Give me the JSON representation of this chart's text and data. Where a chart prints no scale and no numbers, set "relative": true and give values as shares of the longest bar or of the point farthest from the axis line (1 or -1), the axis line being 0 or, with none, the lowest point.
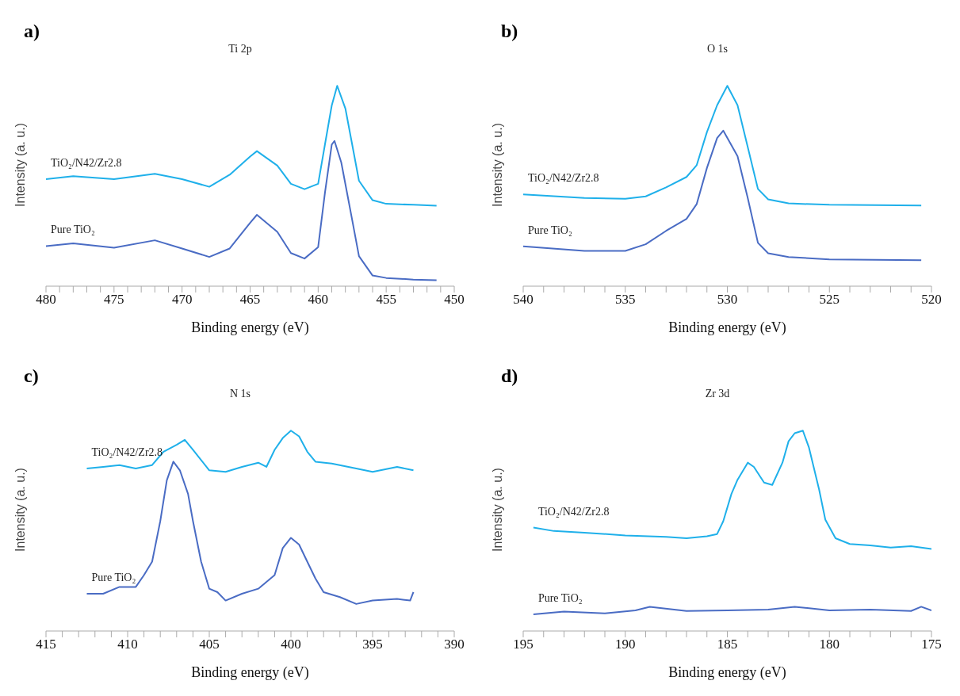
{
  "chart_data": [
    {
      "type": "line",
      "title": "a)",
      "annotations": [
        "Ti 2p"
      ],
      "xlabel": "Binding energy (eV)",
      "ylabel": "Intensity (a. u.)",
      "relative": true,
      "marker": "none",
      "line_style": "solid",
      "tick_labels": "x",
      "xlim": [
        480,
        450
      ],
      "xticks": [
        480,
        {
          "value": 479,
          "label": null
        },
        {
          "value": 478,
          "label": null
        },
        {
          "value": 477,
          "label": null
        },
        {
          "value": 476,
          "label": null
        },
        475,
        {
          "value": 474,
          "label": null
        },
        {
          "value": 473,
          "label": null
        },
        {
          "value": 472,
          "label": null
        },
        {
          "value": 471,
          "label": null
        },
        470,
        {
          "value": 469,
          "label": null
        },
        {
          "value": 468,
          "label": null
        },
        {
          "value": 467,
          "label": null
        },
        {
          "value": 466,
          "label": null
        },
        465,
        {
          "value": 464,
          "label": null
        },
        {
          "value": 463,
          "label": null
        },
        {
          "value": 462,
          "label": null
        },
        {
          "value": 461,
          "label": null
        },
        460,
        {
          "value": 459,
          "label": null
        },
        {
          "value": 458,
          "label": null
        },
        {
          "value": 457,
          "label": null
        },
        {
          "value": 456,
          "label": null
        },
        455,
        {
          "value": 454,
          "label": null
        },
        {
          "value": 453,
          "label": null
        },
        {
          "value": 452,
          "label": null
        },
        {
          "value": 451,
          "label": null
        },
        450
      ],
      "series": [
        {
          "name": "TiO₂/N42/Zr2.8",
          "color": "#1fb0ea",
          "x": [
            480,
            478,
            475,
            472,
            470,
            468,
            466.5,
            465,
            464.5,
            463,
            462,
            461,
            460,
            459.5,
            459,
            458.6,
            458,
            457.5,
            457,
            456,
            455,
            453,
            451.3
          ],
          "values": [
            0.534,
            0.549,
            0.534,
            0.561,
            0.534,
            0.496,
            0.556,
            0.647,
            0.674,
            0.602,
            0.511,
            0.484,
            0.511,
            0.707,
            0.902,
            1.0,
            0.887,
            0.707,
            0.526,
            0.429,
            0.411,
            0.406,
            0.402
          ]
        },
        {
          "name": "Pure TiO₂",
          "color": "#4a6cc4",
          "x": [
            480,
            478,
            475,
            472,
            470,
            468,
            466.5,
            465,
            464.5,
            463,
            462,
            461,
            460,
            459.5,
            459,
            458.8,
            458.3,
            457.5,
            457,
            456,
            455,
            453,
            451.3
          ],
          "values": [
            0.2,
            0.214,
            0.192,
            0.229,
            0.188,
            0.146,
            0.188,
            0.316,
            0.356,
            0.271,
            0.165,
            0.138,
            0.195,
            0.466,
            0.707,
            0.725,
            0.617,
            0.331,
            0.15,
            0.053,
            0.041,
            0.033,
            0.03
          ]
        }
      ]
    },
    {
      "type": "line",
      "title": "b)",
      "annotations": [
        "O 1s"
      ],
      "xlabel": "Binding energy (eV)",
      "ylabel": "Intensity (a. u.)",
      "relative": true,
      "marker": "none",
      "line_style": "solid",
      "tick_labels": "x",
      "xlim": [
        540,
        520
      ],
      "xticks": [
        540,
        {
          "value": 539,
          "label": null
        },
        {
          "value": 538,
          "label": null
        },
        {
          "value": 537,
          "label": null
        },
        {
          "value": 536,
          "label": null
        },
        535,
        {
          "value": 534,
          "label": null
        },
        {
          "value": 533,
          "label": null
        },
        {
          "value": 532,
          "label": null
        },
        {
          "value": 531,
          "label": null
        },
        530,
        {
          "value": 529,
          "label": null
        },
        {
          "value": 528,
          "label": null
        },
        {
          "value": 527,
          "label": null
        },
        {
          "value": 526,
          "label": null
        },
        525,
        {
          "value": 524,
          "label": null
        },
        {
          "value": 523,
          "label": null
        },
        {
          "value": 522,
          "label": null
        },
        {
          "value": 521,
          "label": null
        },
        520
      ],
      "series": [
        {
          "name": "TiO₂/N42/Zr2.8",
          "color": "#1fb0ea",
          "x": [
            540,
            537,
            535,
            534,
            533,
            532,
            531.5,
            531,
            530.5,
            530,
            529.5,
            529,
            528.5,
            528,
            527,
            525,
            520.5
          ],
          "values": [
            0.458,
            0.44,
            0.436,
            0.448,
            0.493,
            0.545,
            0.604,
            0.769,
            0.903,
            1.0,
            0.903,
            0.694,
            0.485,
            0.433,
            0.413,
            0.406,
            0.403
          ]
        },
        {
          "name": "Pure TiO₂",
          "color": "#4a6cc4",
          "x": [
            540,
            537,
            535,
            534,
            533,
            532,
            531.5,
            531,
            530.5,
            530.2,
            529.5,
            529,
            528.5,
            528,
            527,
            525,
            520.5
          ],
          "values": [
            0.199,
            0.176,
            0.176,
            0.209,
            0.276,
            0.336,
            0.41,
            0.59,
            0.739,
            0.776,
            0.649,
            0.44,
            0.216,
            0.164,
            0.145,
            0.134,
            0.13
          ]
        }
      ]
    },
    {
      "type": "line",
      "title": "c)",
      "annotations": [
        "N 1s"
      ],
      "xlabel": "Binding energy (eV)",
      "ylabel": "Intensity (a. u.)",
      "relative": true,
      "marker": "none",
      "line_style": "solid",
      "tick_labels": "x",
      "xlim": [
        415,
        390
      ],
      "xticks": [
        415,
        {
          "value": 414,
          "label": null
        },
        {
          "value": 413,
          "label": null
        },
        {
          "value": 412,
          "label": null
        },
        {
          "value": 411,
          "label": null
        },
        410,
        {
          "value": 409,
          "label": null
        },
        {
          "value": 408,
          "label": null
        },
        {
          "value": 407,
          "label": null
        },
        {
          "value": 406,
          "label": null
        },
        405,
        {
          "value": 404,
          "label": null
        },
        {
          "value": 403,
          "label": null
        },
        {
          "value": 402,
          "label": null
        },
        {
          "value": 401,
          "label": null
        },
        400,
        {
          "value": 399,
          "label": null
        },
        {
          "value": 398,
          "label": null
        },
        {
          "value": 397,
          "label": null
        },
        {
          "value": 396,
          "label": null
        },
        395,
        {
          "value": 394,
          "label": null
        },
        {
          "value": 393,
          "label": null
        },
        {
          "value": 392,
          "label": null
        },
        {
          "value": 391,
          "label": null
        },
        390
      ],
      "series": [
        {
          "name": "TiO₂/N42/Zr2.8",
          "color": "#1fb0ea",
          "x": [
            412.5,
            411.5,
            410.5,
            409.5,
            408.5,
            407.8,
            407,
            406.5,
            406,
            405.5,
            405,
            404,
            403,
            402,
            401.5,
            401,
            400.5,
            400,
            399.5,
            399,
            398.5,
            397.5,
            396,
            395,
            393.5,
            392.5
          ],
          "values": [
            0.811,
            0.819,
            0.828,
            0.811,
            0.828,
            0.895,
            0.929,
            0.954,
            0.904,
            0.853,
            0.802,
            0.794,
            0.819,
            0.84,
            0.819,
            0.904,
            0.963,
            1.0,
            0.971,
            0.895,
            0.845,
            0.836,
            0.811,
            0.794,
            0.819,
            0.802
          ]
        },
        {
          "name": "Pure TiO₂",
          "color": "#4a6cc4",
          "x": [
            412.5,
            411.5,
            410.5,
            409.5,
            409,
            408.5,
            408,
            407.6,
            407.2,
            406.8,
            406.3,
            406,
            405.5,
            405,
            404.5,
            404,
            403,
            402,
            401,
            400.5,
            400,
            399.5,
            399,
            398.5,
            398,
            397,
            396,
            395,
            393.5,
            392.7,
            392.5
          ],
          "values": [
            0.186,
            0.186,
            0.22,
            0.22,
            0.279,
            0.346,
            0.549,
            0.752,
            0.845,
            0.802,
            0.684,
            0.549,
            0.346,
            0.211,
            0.194,
            0.152,
            0.186,
            0.211,
            0.279,
            0.414,
            0.465,
            0.431,
            0.346,
            0.262,
            0.194,
            0.169,
            0.135,
            0.152,
            0.16,
            0.152,
            0.194
          ]
        }
      ]
    },
    {
      "type": "line",
      "title": "d)",
      "annotations": [
        "Zr 3d"
      ],
      "xlabel": "Binding energy (eV)",
      "ylabel": "Intensity (a. u.)",
      "relative": true,
      "marker": "none",
      "line_style": "solid",
      "tick_labels": "x",
      "xlim": [
        195,
        175
      ],
      "xticks": [
        195,
        {
          "value": 194,
          "label": null
        },
        {
          "value": 193,
          "label": null
        },
        {
          "value": 192,
          "label": null
        },
        {
          "value": 191,
          "label": null
        },
        190,
        {
          "value": 189,
          "label": null
        },
        {
          "value": 188,
          "label": null
        },
        {
          "value": 187,
          "label": null
        },
        {
          "value": 186,
          "label": null
        },
        185,
        {
          "value": 184,
          "label": null
        },
        {
          "value": 183,
          "label": null
        },
        {
          "value": 182,
          "label": null
        },
        {
          "value": 181,
          "label": null
        },
        180,
        {
          "value": 179,
          "label": null
        },
        {
          "value": 178,
          "label": null
        },
        {
          "value": 177,
          "label": null
        },
        {
          "value": 176,
          "label": null
        },
        175
      ],
      "series": [
        {
          "name": "TiO₂/N42/Zr2.8",
          "color": "#1fb0ea",
          "x": [
            194.5,
            193.5,
            192,
            190,
            188,
            187,
            186,
            185.5,
            185.2,
            184.8,
            184.5,
            184,
            183.7,
            183.2,
            182.8,
            182.3,
            182,
            181.7,
            181.3,
            181,
            180.5,
            180.2,
            179.7,
            179,
            178,
            177,
            176,
            175
          ],
          "values": [
            0.516,
            0.499,
            0.491,
            0.477,
            0.47,
            0.463,
            0.473,
            0.484,
            0.548,
            0.684,
            0.755,
            0.84,
            0.819,
            0.741,
            0.729,
            0.84,
            0.947,
            0.987,
            1.0,
            0.915,
            0.704,
            0.556,
            0.463,
            0.434,
            0.427,
            0.416,
            0.423,
            0.409
          ]
        },
        {
          "name": "Pure TiO₂",
          "color": "#4a6cc4",
          "x": [
            194.5,
            193,
            191,
            189.5,
            188.8,
            187,
            185,
            183,
            181.7,
            180,
            178,
            176,
            175.5,
            175
          ],
          "values": [
            0.083,
            0.097,
            0.088,
            0.103,
            0.121,
            0.1,
            0.103,
            0.107,
            0.121,
            0.103,
            0.107,
            0.1,
            0.121,
            0.103
          ]
        }
      ]
    }
  ]
}
